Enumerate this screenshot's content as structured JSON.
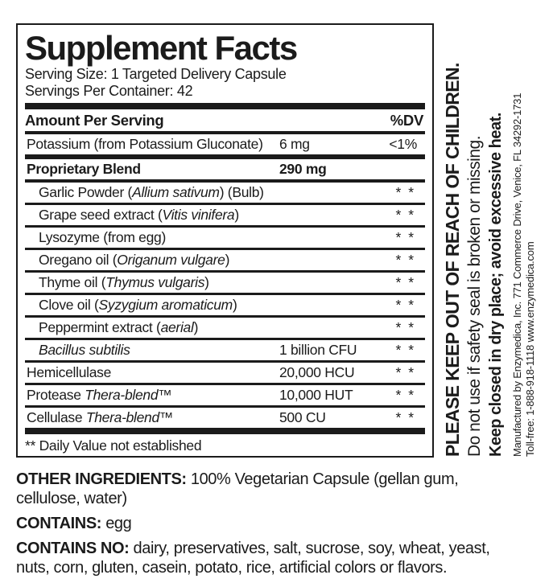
{
  "colors": {
    "ink": "#1b1b1b",
    "bg": "#ffffff"
  },
  "panel": {
    "title": "Supplement Facts",
    "serving_size": "Serving Size: 1 Targeted Delivery Capsule",
    "servings_per_container": "Servings Per Container: 42",
    "columns": {
      "amount": "Amount Per Serving",
      "dv": "%DV"
    },
    "rows": [
      {
        "pre": "Potassium (from Potassium Gluconate)",
        "it": "",
        "post": "",
        "amount": "6 mg",
        "dv": "<1%"
      },
      {
        "pre": "Proprietary Blend",
        "it": "",
        "post": "",
        "amount": "290 mg",
        "dv": ""
      },
      {
        "pre": "Garlic Powder (",
        "it": "Allium sativum",
        "post": ") (Bulb)",
        "amount": "",
        "dv": "* *"
      },
      {
        "pre": "Grape seed extract (",
        "it": "Vitis vinifera",
        "post": ")",
        "amount": "",
        "dv": "* *"
      },
      {
        "pre": "Lysozyme (from egg)",
        "it": "",
        "post": "",
        "amount": "",
        "dv": "* *"
      },
      {
        "pre": "Oregano oil (",
        "it": "Origanum vulgare",
        "post": ")",
        "amount": "",
        "dv": "* *"
      },
      {
        "pre": "Thyme oil (",
        "it": "Thymus vulgaris",
        "post": ")",
        "amount": "",
        "dv": "* *"
      },
      {
        "pre": "Clove oil (",
        "it": "Syzygium aromaticum",
        "post": ")",
        "amount": "",
        "dv": "* *"
      },
      {
        "pre": "Peppermint extract (",
        "it": "aerial",
        "post": ")",
        "amount": "",
        "dv": "* *"
      },
      {
        "pre": "",
        "it": "Bacillus subtilis",
        "post": "",
        "amount": "1 billion CFU",
        "dv": "* *"
      },
      {
        "pre": "Hemicellulase",
        "it": "",
        "post": "",
        "amount": "20,000 HCU",
        "dv": "* *"
      },
      {
        "pre": "Protease ",
        "it": "Thera-blend™",
        "post": "",
        "amount": "10,000 HUT",
        "dv": "* *"
      },
      {
        "pre": "Cellulase ",
        "it": "Thera-blend™",
        "post": "",
        "amount": "500 CU",
        "dv": "* *"
      }
    ],
    "footnote": "** Daily Value not established"
  },
  "side_panel": {
    "warning_primary": "PLEASE KEEP OUT OF REACH OF CHILDREN.",
    "warning_seal": "Do not use if safety seal is broken or missing.",
    "warning_storage": "Keep closed in dry place; avoid excessive heat.",
    "manufacturer": "Manufactured by Enzymedica, Inc. 771 Commerce Drive, Venice, FL 34292-1731",
    "tollfree_web": "Toll-free: 1-888-918-1118 www.enzymedica.com"
  },
  "footer": {
    "other_ingredients_label": "OTHER INGREDIENTS:",
    "other_ingredients_text": " 100% Vegetarian Capsule (gellan gum,\ncellulose, water)",
    "contains_label": "CONTAINS:",
    "contains_text": " egg",
    "contains_no_label": "CONTAINS NO:",
    "contains_no_text": " dairy, preservatives, salt, sucrose, soy, wheat, yeast,\nnuts, corn, gluten, casein, potato, rice, artificial colors or flavors."
  }
}
